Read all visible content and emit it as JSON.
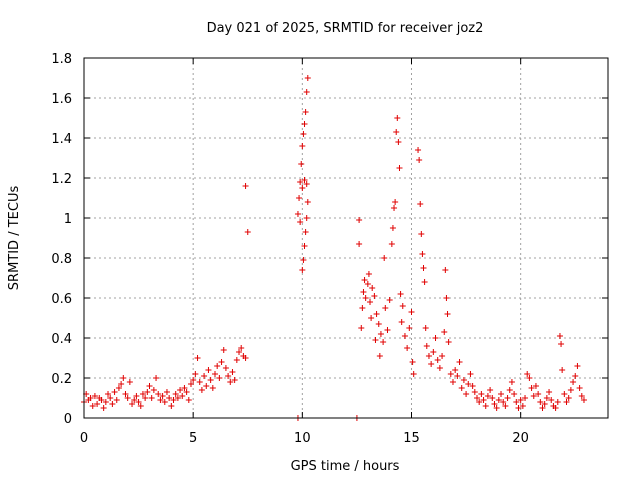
{
  "chart_data": {
    "type": "scatter",
    "title": "Day 021 of 2025, SRMTID for receiver joz2",
    "xlabel": "GPS time / hours",
    "ylabel": "SRMTID / TECUs",
    "xlim": [
      0,
      24
    ],
    "ylim": [
      0,
      1.8
    ],
    "grid": true,
    "marker": "+",
    "x_ticks": [
      0,
      5,
      10,
      15,
      20
    ],
    "x_tick_labels": [
      "0",
      "5",
      "10",
      "15",
      "20"
    ],
    "y_ticks": [
      0,
      0.2,
      0.4,
      0.6,
      0.8,
      1,
      1.2,
      1.4,
      1.6,
      1.8
    ],
    "y_tick_labels": [
      "0",
      "0.2",
      "0.4",
      "0.6",
      "0.8",
      "1",
      "1.2",
      "1.4",
      "1.6",
      "1.8"
    ],
    "series": [
      {
        "name": "SRMTID",
        "color": "#e00000",
        "points": [
          [
            0.0,
            0.08
          ],
          [
            0.1,
            0.12
          ],
          [
            0.2,
            0.09
          ],
          [
            0.3,
            0.1
          ],
          [
            0.4,
            0.06
          ],
          [
            0.5,
            0.11
          ],
          [
            0.6,
            0.07
          ],
          [
            0.7,
            0.1
          ],
          [
            0.8,
            0.09
          ],
          [
            0.9,
            0.05
          ],
          [
            1.0,
            0.08
          ],
          [
            1.1,
            0.12
          ],
          [
            1.2,
            0.1
          ],
          [
            1.3,
            0.07
          ],
          [
            1.4,
            0.13
          ],
          [
            1.5,
            0.09
          ],
          [
            1.6,
            0.15
          ],
          [
            1.7,
            0.17
          ],
          [
            1.8,
            0.2
          ],
          [
            1.9,
            0.12
          ],
          [
            2.0,
            0.1
          ],
          [
            2.1,
            0.18
          ],
          [
            2.2,
            0.07
          ],
          [
            2.3,
            0.09
          ],
          [
            2.4,
            0.11
          ],
          [
            2.5,
            0.08
          ],
          [
            2.6,
            0.06
          ],
          [
            2.7,
            0.12
          ],
          [
            2.8,
            0.1
          ],
          [
            2.9,
            0.13
          ],
          [
            3.0,
            0.16
          ],
          [
            3.1,
            0.1
          ],
          [
            3.2,
            0.14
          ],
          [
            3.3,
            0.2
          ],
          [
            3.4,
            0.12
          ],
          [
            3.5,
            0.09
          ],
          [
            3.6,
            0.11
          ],
          [
            3.7,
            0.08
          ],
          [
            3.8,
            0.13
          ],
          [
            3.9,
            0.1
          ],
          [
            4.0,
            0.06
          ],
          [
            4.1,
            0.09
          ],
          [
            4.2,
            0.12
          ],
          [
            4.3,
            0.1
          ],
          [
            4.4,
            0.14
          ],
          [
            4.5,
            0.11
          ],
          [
            4.6,
            0.15
          ],
          [
            4.7,
            0.13
          ],
          [
            4.8,
            0.09
          ],
          [
            4.9,
            0.17
          ],
          [
            5.0,
            0.19
          ],
          [
            5.1,
            0.22
          ],
          [
            5.2,
            0.3
          ],
          [
            5.3,
            0.18
          ],
          [
            5.4,
            0.14
          ],
          [
            5.5,
            0.21
          ],
          [
            5.6,
            0.16
          ],
          [
            5.7,
            0.24
          ],
          [
            5.8,
            0.19
          ],
          [
            5.9,
            0.15
          ],
          [
            6.0,
            0.22
          ],
          [
            6.1,
            0.26
          ],
          [
            6.2,
            0.2
          ],
          [
            6.3,
            0.28
          ],
          [
            6.4,
            0.34
          ],
          [
            6.5,
            0.25
          ],
          [
            6.6,
            0.21
          ],
          [
            6.7,
            0.18
          ],
          [
            6.8,
            0.23
          ],
          [
            6.9,
            0.19
          ],
          [
            7.0,
            0.29
          ],
          [
            7.1,
            0.33
          ],
          [
            7.2,
            0.35
          ],
          [
            7.3,
            0.31
          ],
          [
            7.4,
            0.3
          ],
          [
            7.4,
            1.16
          ],
          [
            7.5,
            0.93
          ],
          [
            9.8,
            0.0
          ],
          [
            9.8,
            1.02
          ],
          [
            9.85,
            1.1
          ],
          [
            9.9,
            1.18
          ],
          [
            9.95,
            1.27
          ],
          [
            10.0,
            1.36
          ],
          [
            10.05,
            1.42
          ],
          [
            10.1,
            1.47
          ],
          [
            10.15,
            1.53
          ],
          [
            10.2,
            1.63
          ],
          [
            10.25,
            1.7
          ],
          [
            10.0,
            0.74
          ],
          [
            10.05,
            0.79
          ],
          [
            10.1,
            0.86
          ],
          [
            10.15,
            0.93
          ],
          [
            10.2,
            1.0
          ],
          [
            10.25,
            1.08
          ],
          [
            9.9,
            0.98
          ],
          [
            10.0,
            1.15
          ],
          [
            10.1,
            1.19
          ],
          [
            10.2,
            1.17
          ],
          [
            12.5,
            0.0
          ],
          [
            12.6,
            0.99
          ],
          [
            12.6,
            0.87
          ],
          [
            12.7,
            0.45
          ],
          [
            12.75,
            0.55
          ],
          [
            12.8,
            0.63
          ],
          [
            12.85,
            0.69
          ],
          [
            12.9,
            0.6
          ],
          [
            13.0,
            0.67
          ],
          [
            13.05,
            0.72
          ],
          [
            13.1,
            0.58
          ],
          [
            13.15,
            0.5
          ],
          [
            13.2,
            0.65
          ],
          [
            13.3,
            0.61
          ],
          [
            13.35,
            0.39
          ],
          [
            13.4,
            0.52
          ],
          [
            13.5,
            0.47
          ],
          [
            13.55,
            0.31
          ],
          [
            13.6,
            0.42
          ],
          [
            13.7,
            0.38
          ],
          [
            13.75,
            0.8
          ],
          [
            13.8,
            0.55
          ],
          [
            13.9,
            0.44
          ],
          [
            14.0,
            0.59
          ],
          [
            14.1,
            0.87
          ],
          [
            14.15,
            0.95
          ],
          [
            14.2,
            1.05
          ],
          [
            14.25,
            1.08
          ],
          [
            14.3,
            1.43
          ],
          [
            14.35,
            1.5
          ],
          [
            14.4,
            1.38
          ],
          [
            14.45,
            1.25
          ],
          [
            14.5,
            0.62
          ],
          [
            14.55,
            0.48
          ],
          [
            14.6,
            0.56
          ],
          [
            14.7,
            0.41
          ],
          [
            14.8,
            0.35
          ],
          [
            14.9,
            0.45
          ],
          [
            15.0,
            0.53
          ],
          [
            15.05,
            0.28
          ],
          [
            15.1,
            0.22
          ],
          [
            15.3,
            1.34
          ],
          [
            15.35,
            1.29
          ],
          [
            15.4,
            1.07
          ],
          [
            15.45,
            0.92
          ],
          [
            15.5,
            0.82
          ],
          [
            15.55,
            0.75
          ],
          [
            15.6,
            0.68
          ],
          [
            15.65,
            0.45
          ],
          [
            15.7,
            0.36
          ],
          [
            15.8,
            0.31
          ],
          [
            15.9,
            0.27
          ],
          [
            16.0,
            0.33
          ],
          [
            16.1,
            0.4
          ],
          [
            16.2,
            0.29
          ],
          [
            16.3,
            0.25
          ],
          [
            16.4,
            0.31
          ],
          [
            16.5,
            0.43
          ],
          [
            16.55,
            0.74
          ],
          [
            16.6,
            0.6
          ],
          [
            16.65,
            0.52
          ],
          [
            16.7,
            0.38
          ],
          [
            16.8,
            0.22
          ],
          [
            16.9,
            0.18
          ],
          [
            17.0,
            0.24
          ],
          [
            17.1,
            0.21
          ],
          [
            17.2,
            0.28
          ],
          [
            17.3,
            0.15
          ],
          [
            17.4,
            0.19
          ],
          [
            17.5,
            0.12
          ],
          [
            17.6,
            0.17
          ],
          [
            17.7,
            0.22
          ],
          [
            17.8,
            0.16
          ],
          [
            17.9,
            0.13
          ],
          [
            18.0,
            0.1
          ],
          [
            18.1,
            0.08
          ],
          [
            18.2,
            0.12
          ],
          [
            18.3,
            0.09
          ],
          [
            18.4,
            0.06
          ],
          [
            18.5,
            0.11
          ],
          [
            18.6,
            0.14
          ],
          [
            18.7,
            0.1
          ],
          [
            18.8,
            0.07
          ],
          [
            18.9,
            0.05
          ],
          [
            19.0,
            0.09
          ],
          [
            19.1,
            0.12
          ],
          [
            19.2,
            0.08
          ],
          [
            19.3,
            0.06
          ],
          [
            19.4,
            0.1
          ],
          [
            19.5,
            0.14
          ],
          [
            19.6,
            0.18
          ],
          [
            19.7,
            0.12
          ],
          [
            19.8,
            0.08
          ],
          [
            19.9,
            0.05
          ],
          [
            20.0,
            0.09
          ],
          [
            20.1,
            0.06
          ],
          [
            20.2,
            0.1
          ],
          [
            20.3,
            0.22
          ],
          [
            20.4,
            0.2
          ],
          [
            20.5,
            0.15
          ],
          [
            20.6,
            0.11
          ],
          [
            20.7,
            0.16
          ],
          [
            20.8,
            0.12
          ],
          [
            20.9,
            0.08
          ],
          [
            21.0,
            0.05
          ],
          [
            21.1,
            0.07
          ],
          [
            21.2,
            0.1
          ],
          [
            21.3,
            0.13
          ],
          [
            21.4,
            0.09
          ],
          [
            21.5,
            0.06
          ],
          [
            21.6,
            0.05
          ],
          [
            21.7,
            0.08
          ],
          [
            21.8,
            0.41
          ],
          [
            21.85,
            0.37
          ],
          [
            21.9,
            0.24
          ],
          [
            22.0,
            0.12
          ],
          [
            22.1,
            0.08
          ],
          [
            22.2,
            0.1
          ],
          [
            22.3,
            0.14
          ],
          [
            22.4,
            0.18
          ],
          [
            22.5,
            0.21
          ],
          [
            22.6,
            0.26
          ],
          [
            22.7,
            0.15
          ],
          [
            22.8,
            0.11
          ],
          [
            22.9,
            0.09
          ]
        ]
      }
    ]
  }
}
